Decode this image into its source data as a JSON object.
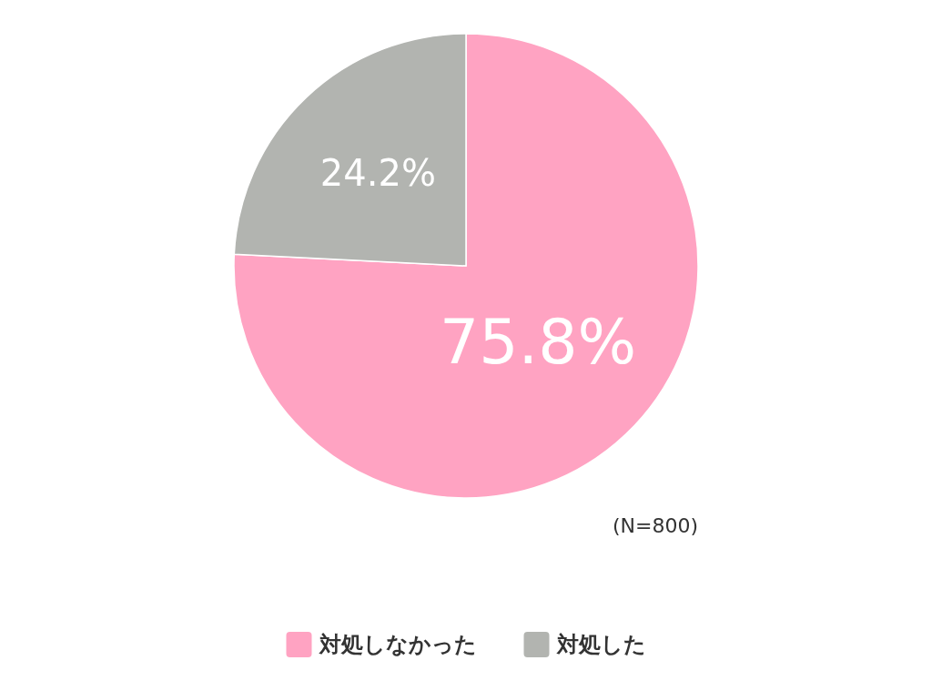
{
  "chart_data": {
    "type": "pie",
    "categories": [
      "対処しなかった",
      "対処した"
    ],
    "values": [
      75.8,
      24.2
    ],
    "colors": [
      "#ffa3c2",
      "#b2b4b0"
    ],
    "value_labels": [
      "75.8%",
      "24.2%"
    ],
    "legend": "bottom",
    "annotations": [
      "(N=800)"
    ]
  }
}
